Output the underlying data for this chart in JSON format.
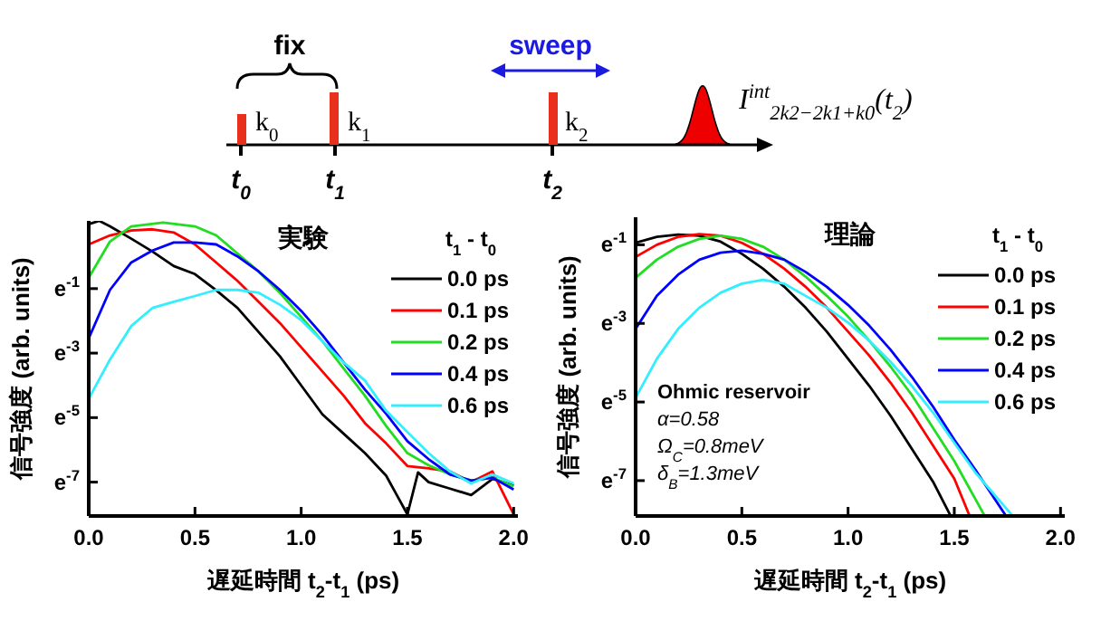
{
  "chart_data": [
    {
      "type": "other",
      "annotations": [
        "fix",
        "sweep",
        "k$_{0}$",
        "k$_{1}$",
        "k$_{2}$",
        "t$_{0}$",
        "t$_{1}$",
        "t$_{2}$",
        "I$^{int}$$_{2k2−2k1+k0}$(t$_{2}$)"
      ]
    },
    {
      "type": "line",
      "title": "実験",
      "xlabel": "遅延時間 t$_{2}$-t$_{1}$ (ps)",
      "ylabel": "信号強度 (arb. units)",
      "legend_title": "t$_{1}$ - t$_{0}$",
      "legend": "top right",
      "grid": false,
      "xlim": [
        0,
        2.02
      ],
      "xticks": [
        {
          "value": 0,
          "label": "0.0"
        },
        {
          "value": 0.5,
          "label": "0.5"
        },
        {
          "value": 1,
          "label": "1.0"
        },
        {
          "value": 1.5,
          "label": "1.5"
        },
        {
          "value": 2,
          "label": "2.0"
        }
      ],
      "ylim": [
        -8.05,
        1.1
      ],
      "yticks": [
        {
          "value": -1,
          "label": "e$^{-1}$"
        },
        {
          "value": -3,
          "label": "e$^{-3}$"
        },
        {
          "value": -5,
          "label": "e$^{-5}$"
        },
        {
          "value": -7,
          "label": "e$^{-7}$"
        }
      ],
      "series": [
        {
          "name": "0.0 ps",
          "color": "#000000",
          "x": [
            0,
            0.05,
            0.1,
            0.2,
            0.3,
            0.4,
            0.5,
            0.6,
            0.7,
            0.8,
            0.9,
            1.0,
            1.1,
            1.2,
            1.3,
            1.4,
            1.45,
            1.5,
            1.55,
            1.6,
            1.7,
            1.8,
            1.9,
            2.0
          ],
          "values": [
            1.0,
            1.1,
            0.93,
            0.55,
            0.15,
            -0.3,
            -0.55,
            -1.05,
            -1.6,
            -2.35,
            -3.1,
            -4.0,
            -4.9,
            -5.5,
            -6.1,
            -6.8,
            -7.4,
            -8.0,
            -6.7,
            -7.0,
            -7.2,
            -7.4,
            -6.9,
            -7.1
          ]
        },
        {
          "name": "0.1 ps",
          "color": "#ff0000",
          "x": [
            0,
            0.1,
            0.2,
            0.3,
            0.4,
            0.5,
            0.6,
            0.7,
            0.8,
            0.9,
            1.0,
            1.1,
            1.2,
            1.3,
            1.4,
            1.5,
            1.6,
            1.7,
            1.8,
            1.9,
            2.0
          ],
          "values": [
            0.37,
            0.65,
            0.8,
            0.84,
            0.74,
            0.37,
            -0.19,
            -0.76,
            -1.41,
            -2.07,
            -2.82,
            -3.57,
            -4.32,
            -5.17,
            -5.8,
            -6.5,
            -6.57,
            -6.67,
            -7.0,
            -6.67,
            -8.0
          ]
        },
        {
          "name": "0.2 ps",
          "color": "#22dd22",
          "x": [
            0,
            0.1,
            0.2,
            0.35,
            0.5,
            0.6,
            0.7,
            0.8,
            0.9,
            1.0,
            1.1,
            1.2,
            1.3,
            1.4,
            1.5,
            1.6,
            1.7,
            1.8,
            1.9,
            2.0
          ],
          "values": [
            -0.66,
            0.46,
            0.93,
            1.05,
            0.93,
            0.65,
            0.09,
            -0.47,
            -1.13,
            -1.88,
            -2.63,
            -3.48,
            -4.32,
            -5.26,
            -6.1,
            -6.48,
            -6.76,
            -6.95,
            -6.86,
            -7.13
          ]
        },
        {
          "name": "0.4 ps",
          "color": "#0000ff",
          "x": [
            0,
            0.1,
            0.2,
            0.3,
            0.4,
            0.5,
            0.6,
            0.7,
            0.8,
            0.9,
            1.0,
            1.1,
            1.2,
            1.3,
            1.4,
            1.5,
            1.6,
            1.7,
            1.8,
            1.9,
            2.0
          ],
          "values": [
            -2.54,
            -1.04,
            -0.19,
            0.18,
            0.43,
            0.43,
            0.37,
            0,
            -0.47,
            -1.04,
            -1.69,
            -2.44,
            -3.29,
            -4.13,
            -4.88,
            -5.73,
            -6.29,
            -6.76,
            -6.95,
            -6.86,
            -7.23
          ]
        },
        {
          "name": "0.6 ps",
          "color": "#33eeff",
          "x": [
            0,
            0.1,
            0.2,
            0.3,
            0.4,
            0.5,
            0.6,
            0.7,
            0.8,
            0.9,
            1.0,
            1.1,
            1.2,
            1.3,
            1.4,
            1.5,
            1.6,
            1.7,
            1.8,
            1.9,
            2.0
          ],
          "values": [
            -4.41,
            -3.2,
            -2.16,
            -1.6,
            -1.41,
            -1.23,
            -1.04,
            -1.04,
            -1.13,
            -1.5,
            -1.98,
            -2.63,
            -3.29,
            -3.85,
            -4.79,
            -5.45,
            -6.1,
            -6.67,
            -7.04,
            -6.76,
            -7.04
          ]
        }
      ]
    },
    {
      "type": "line",
      "title": "理論",
      "xlabel": "遅延時間 t$_{2}$-t$_{1}$ (ps)",
      "ylabel": "信号強度 (arb. units)",
      "legend_title": "t$_{1}$ - t$_{0}$",
      "legend": "top right",
      "grid": false,
      "annotations": [
        "Ohmic reservoir",
        "α=0.58",
        "Ω$_{C}$=0.8meV",
        "δ$_{B}$=1.3meV"
      ],
      "xlim": [
        0,
        2.02
      ],
      "xticks": [
        {
          "value": 0,
          "label": "0.0"
        },
        {
          "value": 0.5,
          "label": "0.5"
        },
        {
          "value": 1,
          "label": "1.0"
        },
        {
          "value": 1.5,
          "label": "1.5"
        },
        {
          "value": 2,
          "label": "2.0"
        }
      ],
      "ylim": [
        -7.9,
        -0.3
      ],
      "yticks": [
        {
          "value": -1,
          "label": "e$^{-1}$"
        },
        {
          "value": -3,
          "label": "e$^{-3}$"
        },
        {
          "value": -5,
          "label": "e$^{-5}$"
        },
        {
          "value": -7,
          "label": "e$^{-7}$"
        }
      ],
      "series": [
        {
          "name": "0.0 ps",
          "color": "#000000",
          "x": [
            0,
            0.1,
            0.2,
            0.3,
            0.4,
            0.5,
            0.6,
            0.7,
            0.8,
            0.9,
            1.0,
            1.1,
            1.2,
            1.3,
            1.4,
            1.48
          ],
          "values": [
            -0.95,
            -0.8,
            -0.74,
            -0.77,
            -0.92,
            -1.23,
            -1.61,
            -2.07,
            -2.6,
            -3.21,
            -3.9,
            -4.59,
            -5.35,
            -6.19,
            -7.03,
            -7.87
          ]
        },
        {
          "name": "0.1 ps",
          "color": "#ff0000",
          "x": [
            0,
            0.1,
            0.2,
            0.3,
            0.4,
            0.5,
            0.6,
            0.7,
            0.8,
            0.9,
            1.0,
            1.1,
            1.2,
            1.3,
            1.4,
            1.5,
            1.57
          ],
          "values": [
            -1.31,
            -1.0,
            -0.8,
            -0.73,
            -0.77,
            -0.95,
            -1.23,
            -1.61,
            -2.07,
            -2.6,
            -3.21,
            -3.82,
            -4.51,
            -5.27,
            -6.11,
            -6.95,
            -7.87
          ]
        },
        {
          "name": "0.2 ps",
          "color": "#22dd22",
          "x": [
            0,
            0.1,
            0.2,
            0.3,
            0.4,
            0.5,
            0.6,
            0.7,
            0.8,
            0.9,
            1.0,
            1.1,
            1.2,
            1.3,
            1.4,
            1.5,
            1.64
          ],
          "values": [
            -1.84,
            -1.38,
            -1.05,
            -0.85,
            -0.77,
            -0.85,
            -1.05,
            -1.38,
            -1.81,
            -2.3,
            -2.83,
            -3.44,
            -4.1,
            -4.82,
            -5.66,
            -6.5,
            -7.87
          ]
        },
        {
          "name": "0.4 ps",
          "color": "#0000ff",
          "x": [
            0,
            0.1,
            0.2,
            0.3,
            0.4,
            0.5,
            0.6,
            0.7,
            0.8,
            0.9,
            1.0,
            1.1,
            1.2,
            1.3,
            1.4,
            1.5,
            1.6,
            1.74
          ],
          "values": [
            -3.14,
            -2.3,
            -1.76,
            -1.38,
            -1.2,
            -1.15,
            -1.23,
            -1.38,
            -1.69,
            -2.07,
            -2.53,
            -3.06,
            -3.67,
            -4.36,
            -5.12,
            -5.96,
            -6.73,
            -7.87
          ]
        },
        {
          "name": "0.6 ps",
          "color": "#33eeff",
          "x": [
            0,
            0.1,
            0.2,
            0.3,
            0.4,
            0.5,
            0.6,
            0.7,
            0.8,
            0.9,
            1.0,
            1.1,
            1.2,
            1.3,
            1.4,
            1.5,
            1.6,
            1.77
          ],
          "values": [
            -4.89,
            -3.9,
            -3.14,
            -2.6,
            -2.22,
            -1.99,
            -1.89,
            -1.99,
            -2.3,
            -2.6,
            -2.98,
            -3.44,
            -3.98,
            -4.59,
            -5.27,
            -6.04,
            -6.8,
            -7.87
          ]
        }
      ]
    }
  ]
}
